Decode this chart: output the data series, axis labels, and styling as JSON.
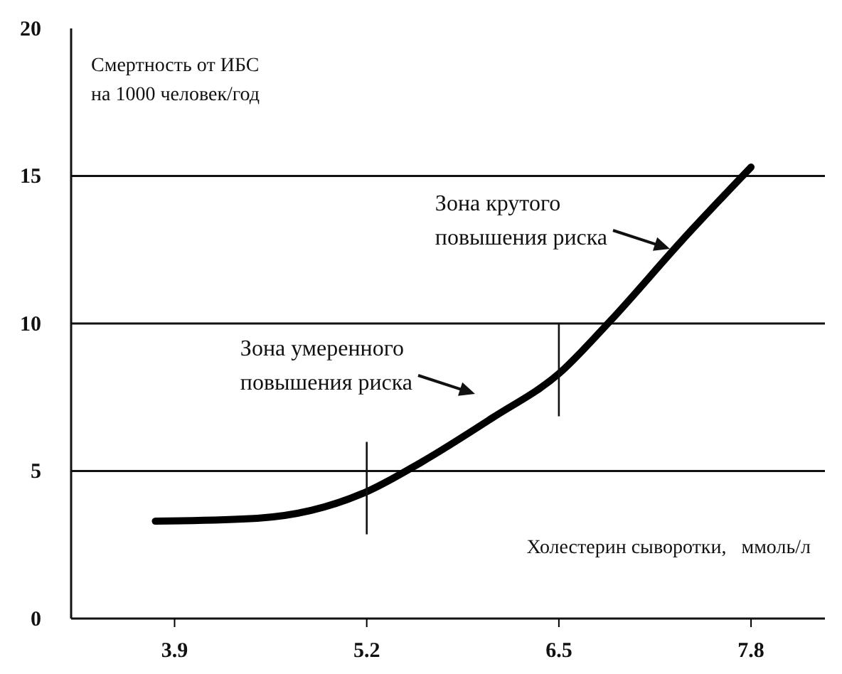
{
  "chart_data": {
    "type": "line",
    "ylabel": "Смертность от ИБС\nна 1000 человек/год",
    "xlabel": "Холестерин сыворотки,   ммоль/л",
    "x": [
      3.77,
      4.46,
      5.2,
      5.57,
      6.05,
      6.5,
      6.85,
      7.33,
      7.8
    ],
    "series": [
      {
        "color": "#000000",
        "values": [
          3.3,
          3.4,
          4.3,
          5.3,
          6.8,
          8.3,
          10.1,
          12.8,
          15.3
        ]
      }
    ],
    "xlim": [
      3.2,
      8.3
    ],
    "xticks": [
      3.9,
      5.2,
      6.5,
      7.8
    ],
    "ylim": [
      0,
      20
    ],
    "yticks": [
      0,
      5,
      10,
      15,
      20
    ],
    "grid": "y",
    "marker": "none",
    "line_style": "solid",
    "ref_lines": [
      {
        "axis": "x",
        "value": 5.2
      },
      {
        "axis": "x",
        "value": 6.5
      }
    ],
    "annotations": [
      "Зона крутого\nповышения риска",
      "Зона умеренного\nповышения риска"
    ]
  }
}
